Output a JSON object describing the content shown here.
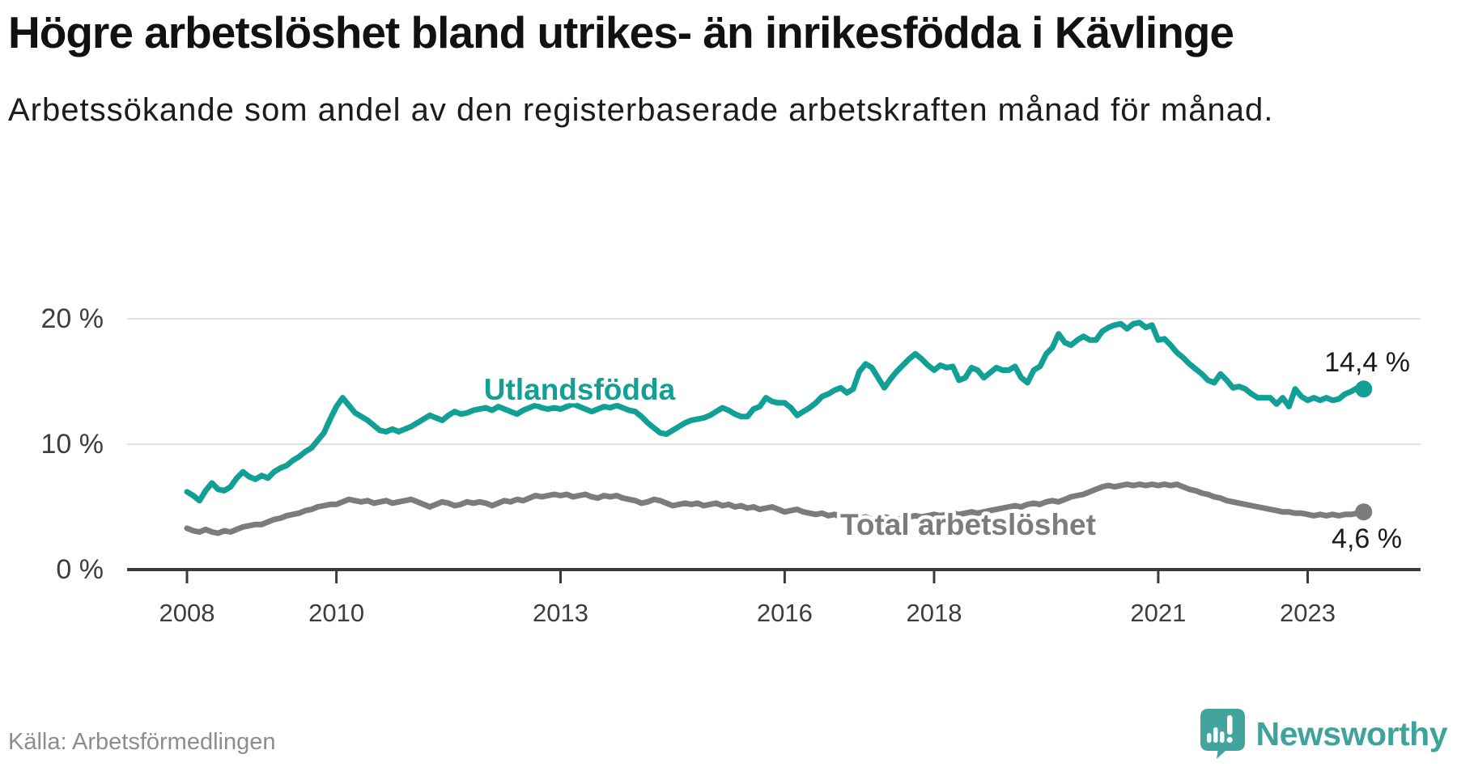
{
  "header": {
    "title": "Högre arbetslöshet bland utrikes- än inrikesfödda i Kävlinge",
    "subtitle": "Arbetssökande som andel av den registerbaserade arbetskraften månad för månad."
  },
  "footer": {
    "source": "Källa: Arbetsförmedlingen",
    "brand": "Newsworthy"
  },
  "colors": {
    "foreign_born_line": "#12a096",
    "total_line": "#7c7c7c",
    "grid": "#e1e1e1",
    "axis": "#3a3a3a",
    "tick_label": "#3d3d3d",
    "value_label": "#1b1b1b",
    "brand_teal": "#43a49d"
  },
  "chart_data": {
    "type": "line",
    "title": "Högre arbetslöshet bland utrikes- än inrikesfödda i Kävlinge",
    "subtitle": "Arbetssökande som andel av den registerbaserade arbetskraften månad för månad.",
    "x_start": "2008-01",
    "x_end": "2023-10",
    "x_frequency": "monthly",
    "ylim": [
      0,
      22
    ],
    "grid": "horizontal-only",
    "legend_position": "inline-labels",
    "y_ticks": [
      {
        "value": 0,
        "label": "0 %"
      },
      {
        "value": 10,
        "label": "10 %"
      },
      {
        "value": 20,
        "label": "20 %"
      }
    ],
    "x_ticks": [
      {
        "value": 2008,
        "label": "2008"
      },
      {
        "value": 2010,
        "label": "2010"
      },
      {
        "value": 2013,
        "label": "2013"
      },
      {
        "value": 2016,
        "label": "2016"
      },
      {
        "value": 2018,
        "label": "2018"
      },
      {
        "value": 2021,
        "label": "2021"
      },
      {
        "value": 2023,
        "label": "2023"
      }
    ],
    "series": [
      {
        "name": "Utlandsfödda",
        "color": "#12a096",
        "end_label": "14,4 %",
        "end_value": 14.4,
        "values": [
          6.2,
          5.9,
          5.5,
          6.3,
          6.9,
          6.4,
          6.3,
          6.6,
          7.3,
          7.8,
          7.4,
          7.2,
          7.5,
          7.3,
          7.8,
          8.1,
          8.3,
          8.7,
          9.0,
          9.4,
          9.7,
          10.3,
          10.9,
          12.0,
          13.0,
          13.7,
          13.1,
          12.5,
          12.2,
          11.9,
          11.5,
          11.1,
          11.0,
          11.2,
          11.0,
          11.2,
          11.4,
          11.7,
          12.0,
          12.3,
          12.1,
          11.9,
          12.3,
          12.6,
          12.4,
          12.5,
          12.7,
          12.8,
          12.9,
          12.7,
          13.0,
          12.8,
          12.6,
          12.4,
          12.7,
          12.9,
          13.1,
          12.9,
          12.8,
          12.9,
          12.8,
          13.0,
          13.2,
          13.0,
          12.8,
          12.6,
          12.8,
          13.0,
          12.9,
          13.1,
          12.9,
          12.7,
          12.6,
          12.2,
          11.7,
          11.3,
          10.9,
          10.8,
          11.1,
          11.4,
          11.7,
          11.9,
          12.0,
          12.1,
          12.3,
          12.6,
          12.9,
          12.7,
          12.4,
          12.2,
          12.2,
          12.8,
          13.0,
          13.7,
          13.4,
          13.3,
          13.3,
          12.9,
          12.3,
          12.6,
          12.9,
          13.3,
          13.8,
          14.0,
          14.3,
          14.5,
          14.1,
          14.4,
          15.8,
          16.4,
          16.1,
          15.3,
          14.5,
          15.2,
          15.8,
          16.3,
          16.8,
          17.2,
          16.8,
          16.3,
          15.9,
          16.3,
          16.1,
          16.2,
          15.1,
          15.3,
          16.1,
          15.9,
          15.3,
          15.7,
          16.1,
          15.9,
          15.9,
          16.2,
          15.3,
          14.9,
          15.9,
          16.2,
          17.2,
          17.7,
          18.8,
          18.1,
          17.9,
          18.3,
          18.6,
          18.3,
          18.3,
          19.0,
          19.3,
          19.5,
          19.6,
          19.2,
          19.6,
          19.7,
          19.3,
          19.5,
          18.3,
          18.4,
          17.9,
          17.3,
          16.9,
          16.4,
          16.0,
          15.6,
          15.1,
          14.9,
          15.6,
          15.1,
          14.5,
          14.6,
          14.4,
          14.0,
          13.7,
          13.7,
          13.7,
          13.2,
          13.7,
          13.0,
          14.4,
          13.8,
          13.5,
          13.7,
          13.5,
          13.7,
          13.5,
          13.6,
          14.0,
          14.2,
          14.5,
          14.4
        ]
      },
      {
        "name": "Total arbetslöshet",
        "color": "#7c7c7c",
        "end_label": "4,6 %",
        "end_value": 4.6,
        "values": [
          3.3,
          3.1,
          3.0,
          3.2,
          3.0,
          2.9,
          3.1,
          3.0,
          3.2,
          3.4,
          3.5,
          3.6,
          3.6,
          3.8,
          4.0,
          4.1,
          4.3,
          4.4,
          4.5,
          4.7,
          4.8,
          5.0,
          5.1,
          5.2,
          5.2,
          5.4,
          5.6,
          5.5,
          5.4,
          5.5,
          5.3,
          5.4,
          5.5,
          5.3,
          5.4,
          5.5,
          5.6,
          5.4,
          5.2,
          5.0,
          5.2,
          5.4,
          5.3,
          5.1,
          5.2,
          5.4,
          5.3,
          5.4,
          5.3,
          5.1,
          5.3,
          5.5,
          5.4,
          5.6,
          5.5,
          5.7,
          5.9,
          5.8,
          5.9,
          6.0,
          5.9,
          6.0,
          5.8,
          5.9,
          6.0,
          5.8,
          5.7,
          5.9,
          5.8,
          5.9,
          5.7,
          5.6,
          5.5,
          5.3,
          5.4,
          5.6,
          5.5,
          5.3,
          5.1,
          5.2,
          5.3,
          5.2,
          5.3,
          5.1,
          5.2,
          5.3,
          5.1,
          5.2,
          5.0,
          5.1,
          4.9,
          5.0,
          4.8,
          4.9,
          5.0,
          4.8,
          4.6,
          4.7,
          4.8,
          4.6,
          4.5,
          4.4,
          4.5,
          4.3,
          4.4,
          4.2,
          4.3,
          4.2,
          4.1,
          4.2,
          4.0,
          4.1,
          4.2,
          4.1,
          4.0,
          4.1,
          4.2,
          4.3,
          4.2,
          4.3,
          4.4,
          4.3,
          4.4,
          4.5,
          4.4,
          4.5,
          4.6,
          4.5,
          4.6,
          4.7,
          4.8,
          4.9,
          5.0,
          5.1,
          5.0,
          5.2,
          5.3,
          5.2,
          5.4,
          5.5,
          5.4,
          5.6,
          5.8,
          5.9,
          6.0,
          6.2,
          6.4,
          6.6,
          6.7,
          6.6,
          6.7,
          6.8,
          6.7,
          6.8,
          6.7,
          6.8,
          6.7,
          6.8,
          6.7,
          6.8,
          6.6,
          6.4,
          6.3,
          6.1,
          6.0,
          5.8,
          5.7,
          5.5,
          5.4,
          5.3,
          5.2,
          5.1,
          5.0,
          4.9,
          4.8,
          4.7,
          4.6,
          4.6,
          4.5,
          4.5,
          4.4,
          4.3,
          4.4,
          4.3,
          4.4,
          4.3,
          4.4,
          4.4,
          4.5,
          4.6
        ]
      }
    ]
  }
}
